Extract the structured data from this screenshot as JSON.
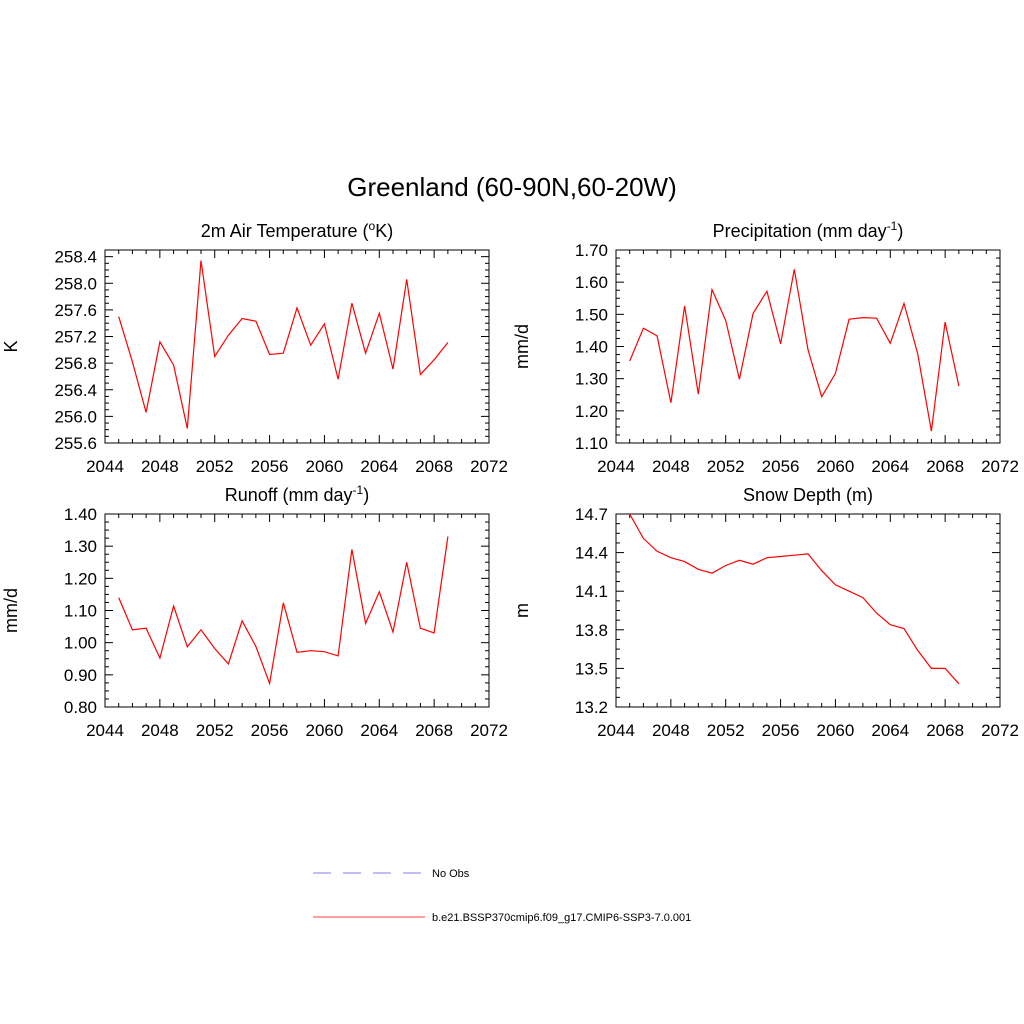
{
  "figure": {
    "title": "Greenland (60-90N,60-20W)"
  },
  "legend": {
    "entries": [
      {
        "label": "No Obs",
        "color": "#9999ee",
        "style": "dashed"
      },
      {
        "label": "b.e21.BSSP370cmip6.f09_g17.CMIP6-SSP3-7.0.001",
        "color": "#ff6666",
        "style": "solid"
      }
    ]
  },
  "chart_data": [
    {
      "type": "line",
      "title": "2m Air Temperature (oK)",
      "title_parts": {
        "main": "2m Air Temperature (",
        "sup": "o",
        "tail": "K)"
      },
      "ylabel": "K",
      "xlim": [
        2044,
        2072
      ],
      "ylim": [
        255.6,
        258.5
      ],
      "xticks": [
        2044,
        2048,
        2052,
        2056,
        2060,
        2064,
        2068,
        2072
      ],
      "yticks": [
        "255.6",
        "256.0",
        "256.4",
        "256.8",
        "257.2",
        "257.6",
        "258.0",
        "258.4"
      ],
      "series": [
        {
          "color": "#ff0000",
          "x": [
            2045,
            2046,
            2047,
            2048,
            2049,
            2050,
            2051,
            2052,
            2053,
            2054,
            2055,
            2056,
            2057,
            2058,
            2059,
            2060,
            2061,
            2062,
            2063,
            2064,
            2065,
            2066,
            2067,
            2068,
            2069
          ],
          "y": [
            257.5,
            256.82,
            256.06,
            257.12,
            256.77,
            255.82,
            258.34,
            256.9,
            257.22,
            257.47,
            257.43,
            256.93,
            256.95,
            257.63,
            257.07,
            257.39,
            256.56,
            257.7,
            256.95,
            257.55,
            256.71,
            258.06,
            256.63,
            256.85,
            257.11
          ]
        }
      ]
    },
    {
      "type": "line",
      "title": "Precipitation (mm day-1)",
      "title_parts": {
        "main": "Precipitation (mm day",
        "sup": "-1",
        "tail": ")"
      },
      "ylabel": "mm/d",
      "xlim": [
        2044,
        2072
      ],
      "ylim": [
        1.1,
        1.7
      ],
      "xticks": [
        2044,
        2048,
        2052,
        2056,
        2060,
        2064,
        2068,
        2072
      ],
      "yticks": [
        "1.10",
        "1.20",
        "1.30",
        "1.40",
        "1.50",
        "1.60",
        "1.70"
      ],
      "series": [
        {
          "color": "#ff0000",
          "x": [
            2045,
            2046,
            2047,
            2048,
            2049,
            2050,
            2051,
            2052,
            2053,
            2054,
            2055,
            2056,
            2057,
            2058,
            2059,
            2060,
            2061,
            2062,
            2063,
            2064,
            2065,
            2066,
            2067,
            2068,
            2069
          ],
          "y": [
            1.355,
            1.457,
            1.433,
            1.225,
            1.526,
            1.252,
            1.577,
            1.481,
            1.298,
            1.503,
            1.572,
            1.408,
            1.64,
            1.39,
            1.244,
            1.316,
            1.485,
            1.49,
            1.488,
            1.41,
            1.534,
            1.377,
            1.137,
            1.476,
            1.277
          ]
        }
      ]
    },
    {
      "type": "line",
      "title": "Runoff (mm day-1)",
      "title_parts": {
        "main": "Runoff (mm day",
        "sup": "-1",
        "tail": ")"
      },
      "ylabel": "mm/d",
      "xlim": [
        2044,
        2072
      ],
      "ylim": [
        0.8,
        1.4
      ],
      "xticks": [
        2044,
        2048,
        2052,
        2056,
        2060,
        2064,
        2068,
        2072
      ],
      "yticks": [
        "0.80",
        "0.90",
        "1.00",
        "1.10",
        "1.20",
        "1.30",
        "1.40"
      ],
      "series": [
        {
          "color": "#ff0000",
          "x": [
            2045,
            2046,
            2047,
            2048,
            2049,
            2050,
            2051,
            2052,
            2053,
            2054,
            2055,
            2056,
            2057,
            2058,
            2059,
            2060,
            2061,
            2062,
            2063,
            2064,
            2065,
            2066,
            2067,
            2068,
            2069
          ],
          "y": [
            1.14,
            1.04,
            1.045,
            0.952,
            1.114,
            0.987,
            1.04,
            0.982,
            0.934,
            1.068,
            0.988,
            0.873,
            1.124,
            0.97,
            0.975,
            0.972,
            0.959,
            1.29,
            1.06,
            1.158,
            1.033,
            1.25,
            1.045,
            1.03,
            1.33
          ]
        }
      ]
    },
    {
      "type": "line",
      "title": "Snow Depth (m)",
      "title_parts": {
        "main": "Snow Depth (m)",
        "sup": "",
        "tail": ""
      },
      "ylabel": "m",
      "xlim": [
        2044,
        2072
      ],
      "ylim": [
        13.2,
        14.7
      ],
      "xticks": [
        2044,
        2048,
        2052,
        2056,
        2060,
        2064,
        2068,
        2072
      ],
      "yticks": [
        "13.2",
        "13.5",
        "13.8",
        "14.1",
        "14.4",
        "14.7"
      ],
      "series": [
        {
          "color": "#ff0000",
          "x": [
            2045,
            2046,
            2047,
            2048,
            2049,
            2050,
            2051,
            2052,
            2053,
            2054,
            2055,
            2056,
            2057,
            2058,
            2059,
            2060,
            2061,
            2062,
            2063,
            2064,
            2065,
            2066,
            2067,
            2068,
            2069
          ],
          "y": [
            14.7,
            14.51,
            14.41,
            14.36,
            14.33,
            14.27,
            14.24,
            14.3,
            14.34,
            14.31,
            14.36,
            14.37,
            14.38,
            14.39,
            14.26,
            14.15,
            14.1,
            14.05,
            13.93,
            13.84,
            13.81,
            13.64,
            13.5,
            13.5,
            13.38
          ]
        }
      ]
    }
  ]
}
